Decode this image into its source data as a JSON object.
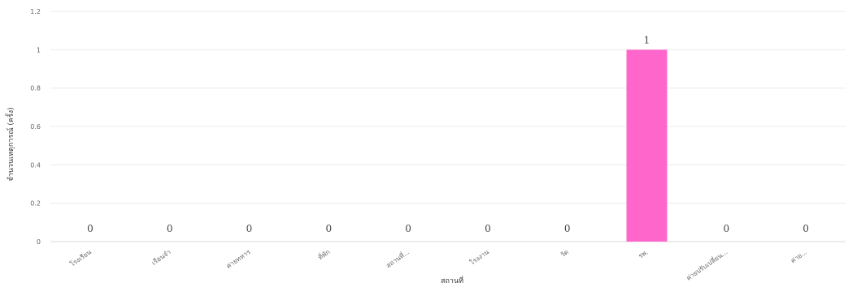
{
  "chart_data": {
    "type": "bar",
    "title": "",
    "xlabel": "สถานที่",
    "ylabel": "จำนวนเหตุการณ์ (ครั้ง)",
    "ylim": [
      0,
      1.2
    ],
    "yticks": [
      "0",
      "0.2",
      "0.4",
      "0.6",
      "0.8",
      "1",
      "1.2"
    ],
    "categories": [
      "โรงเรียน",
      "เรือนจำ",
      "ค่ายทหาร",
      "ที่พัก",
      "สถานที่...",
      "โรงงาน",
      "วัด",
      "รพ.",
      "ค่ายปรับเปลี่ยน...",
      "ค่าย..."
    ],
    "values": [
      0,
      0,
      0,
      0,
      0,
      0,
      0,
      1,
      0,
      0
    ],
    "data_labels": [
      "0",
      "0",
      "0",
      "0",
      "0",
      "0",
      "0",
      "1",
      "0",
      "0"
    ],
    "bar_color": "#ff66cc",
    "grid": true
  }
}
